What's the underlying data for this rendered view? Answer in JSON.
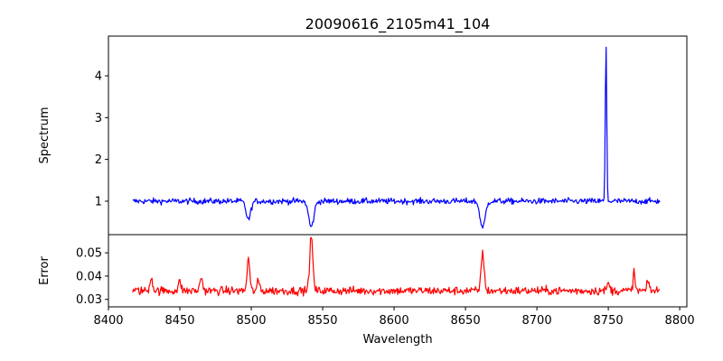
{
  "chart_data": [
    {
      "type": "line",
      "panel": "top",
      "title": "20090616_2105m41_104",
      "ylabel": "Spectrum",
      "xlabel": "",
      "xlim": [
        8400,
        8805
      ],
      "ylim": [
        0.2,
        4.95
      ],
      "yticks": [
        1,
        2,
        3,
        4
      ],
      "ytick_labels": [
        "1",
        "2",
        "3",
        "4"
      ],
      "grid": false,
      "series": [
        {
          "name": "spectrum",
          "color": "#0000ff",
          "x_range": [
            8417,
            8786
          ],
          "baseline": 1.0,
          "noise": 0.035,
          "features": [
            {
              "center": 8498,
              "depth": 0.44,
              "width": 1.6
            },
            {
              "center": 8542,
              "depth": 0.62,
              "width": 1.8
            },
            {
              "center": 8662,
              "depth": 0.64,
              "width": 1.8
            },
            {
              "center": 8748.4,
              "depth": -3.72,
              "width": 0.5
            }
          ]
        }
      ]
    },
    {
      "type": "line",
      "panel": "bottom",
      "title": "",
      "ylabel": "Error",
      "xlabel": "Wavelength",
      "xlim": [
        8400,
        8805
      ],
      "ylim": [
        0.0268,
        0.0578
      ],
      "xticks": [
        8400,
        8450,
        8500,
        8550,
        8600,
        8650,
        8700,
        8750,
        8800
      ],
      "xtick_labels": [
        "8400",
        "8450",
        "8500",
        "8550",
        "8600",
        "8650",
        "8700",
        "8750",
        "8800"
      ],
      "yticks": [
        0.03,
        0.04,
        0.05
      ],
      "ytick_labels": [
        "0.03",
        "0.04",
        "0.05"
      ],
      "grid": false,
      "series": [
        {
          "name": "error",
          "color": "#ff0000",
          "x_range": [
            8417,
            8786
          ],
          "baseline": 0.0337,
          "noise": 0.0009,
          "features": [
            {
              "center": 8430,
              "height": 0.006,
              "width": 0.9
            },
            {
              "center": 8450,
              "height": 0.004,
              "width": 0.9
            },
            {
              "center": 8465,
              "height": 0.006,
              "width": 0.9
            },
            {
              "center": 8498,
              "height": 0.014,
              "width": 0.9
            },
            {
              "center": 8505,
              "height": 0.004,
              "width": 0.9
            },
            {
              "center": 8542,
              "height": 0.023,
              "width": 1.1
            },
            {
              "center": 8662,
              "height": 0.017,
              "width": 1.0
            },
            {
              "center": 8750,
              "height": 0.003,
              "width": 1.0
            },
            {
              "center": 8768,
              "height": 0.008,
              "width": 0.7
            },
            {
              "center": 8778,
              "height": 0.004,
              "width": 0.8
            }
          ]
        }
      ]
    }
  ]
}
